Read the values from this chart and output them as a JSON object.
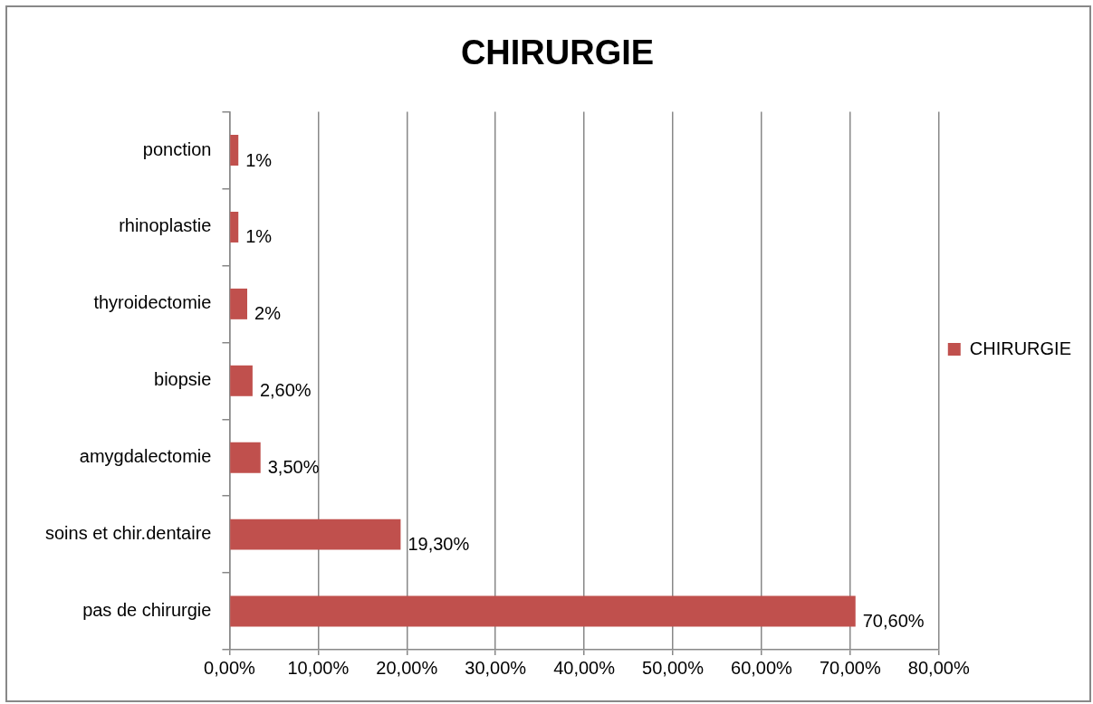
{
  "chart_data": {
    "type": "bar",
    "title": "CHIRURGIE",
    "orientation": "horizontal",
    "categories": [
      "ponction",
      "rhinoplastie",
      "thyroidectomie",
      "biopsie",
      "amygdalectomie",
      "soins et chir.dentaire",
      "pas de chirurgie"
    ],
    "series": [
      {
        "name": "CHIRURGIE",
        "color": "#c0504d",
        "values": [
          1,
          1,
          2,
          2.6,
          3.5,
          19.3,
          70.6
        ],
        "value_labels": [
          "1%",
          "1%",
          "2%",
          "2,60%",
          "3,50%",
          "19,30%",
          "70,60%"
        ]
      }
    ],
    "xlim": [
      0,
      80
    ],
    "xticks": [
      {
        "value": 0,
        "label": "0,00%"
      },
      {
        "value": 10,
        "label": "10,00%"
      },
      {
        "value": 20,
        "label": "20,00%"
      },
      {
        "value": 30,
        "label": "30,00%"
      },
      {
        "value": 40,
        "label": "40,00%"
      },
      {
        "value": 50,
        "label": "50,00%"
      },
      {
        "value": 60,
        "label": "60,00%"
      },
      {
        "value": 70,
        "label": "70,00%"
      },
      {
        "value": 80,
        "label": "80,00%"
      }
    ],
    "grid": "x",
    "legend": "right"
  }
}
